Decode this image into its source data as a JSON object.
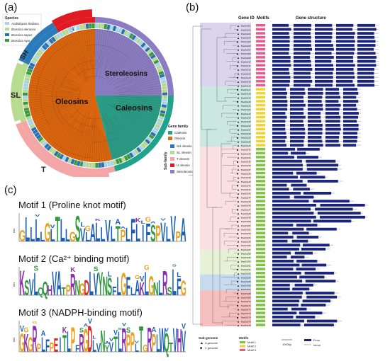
{
  "panels": {
    "a": {
      "label": "(a)"
    },
    "b": {
      "label": "(b)"
    },
    "c": {
      "label": "(c)"
    }
  },
  "tree_a": {
    "species_title": "Species",
    "species": [
      {
        "name": "Arabidopsis thaliana",
        "color": "#a6d3e6"
      },
      {
        "name": "Brassica oleracea",
        "color": "#b4d88f"
      },
      {
        "name": "Brassica napus",
        "color": "#2a6fae"
      },
      {
        "name": "Brassica rapa",
        "color": "#3b9a3c"
      }
    ],
    "clade_labels": {
      "oleosins": "Oleosins",
      "steroleosins": "Steroleosins",
      "caleosins": "Caleosins"
    },
    "outer_labels": {
      "U": "U",
      "SH": "SH",
      "SL": "SL",
      "T": "T"
    },
    "gene_family_title": "Gene family",
    "gene_family": [
      {
        "name": "Caleosin",
        "color": "#1fa38c"
      },
      {
        "name": "Oleosin",
        "color": "#e06a12"
      }
    ],
    "subfamily_title": "Sub-family",
    "subfamily": [
      {
        "name": "SH oleosin",
        "color": "#2b7bba"
      },
      {
        "name": "SL oleosin",
        "color": "#b7dc8f"
      },
      {
        "name": "T oleosin",
        "color": "#f4a6a6"
      },
      {
        "name": "U oleosin",
        "color": "#e01b24"
      },
      {
        "name": "Steroleosin",
        "color": "#8c7cc4"
      }
    ],
    "colors": {
      "oleosin": "#d9650f",
      "steroleosin": "#8a7cc0",
      "caleosin": "#2a9c86"
    }
  },
  "panel_b": {
    "headers": {
      "gene_id": "Gene ID",
      "motifs": "Motifs",
      "gene_structure": "Gene structure"
    },
    "subgenome_title": "Sub-genome",
    "subgenome": [
      {
        "symbol": "▲",
        "label": "A genome"
      },
      {
        "symbol": "■",
        "label": "C genome"
      }
    ],
    "motifs_title": "Motifs",
    "motifs_legend": [
      {
        "label": "Motif 1",
        "color": "#7fc241"
      },
      {
        "label": "Motif 2",
        "color": "#f2d22e"
      },
      {
        "label": "Motif 3",
        "color": "#e85a8c"
      }
    ],
    "scale_label": "1000bp",
    "structure_legend": [
      {
        "label": "Exon",
        "color": "#1a237e"
      },
      {
        "label": "Intron",
        "color": "#cccccc"
      }
    ],
    "row_prefix": "BnaOLE",
    "bands": [
      {
        "name": "steroleosin",
        "color": "#bcb3dc"
      },
      {
        "name": "caleosin",
        "color": "#9ed6c4"
      },
      {
        "name": "T",
        "color": "#f6c6c6"
      },
      {
        "name": "SL",
        "color": "#cfe8b2"
      },
      {
        "name": "SH",
        "color": "#97bfe0"
      },
      {
        "name": "U",
        "color": "#ef8b8b"
      }
    ]
  },
  "panel_c": {
    "motifs": [
      {
        "title": "Motif 1 (Proline knot motif)",
        "ylabel": "bits",
        "sequence": "GLLLLGLTLLGSVLALLVLTPLFLIFSPVLVPA"
      },
      {
        "title": "Motif 2 (Ca²⁺ binding motif)",
        "ylabel": "bits",
        "sequence": "KSVLQQHVATPRNGDLVYNSFLGFLAKLGNLRSLFG"
      },
      {
        "title": "Motif 3 (NADPH-binding motif)",
        "ylabel": "bits",
        "sequence": "GKGRPLFPEITLPFRGDLVNYVTLRPPLTGRPLWQTVHV"
      }
    ],
    "letter_colors": {
      "hydrophobic": "#1b5fb6",
      "polar": "#2f9a3c",
      "acidic": "#d42a2a",
      "basic": "#8b2fae",
      "special": "#e8a320",
      "other": "#222222"
    }
  }
}
